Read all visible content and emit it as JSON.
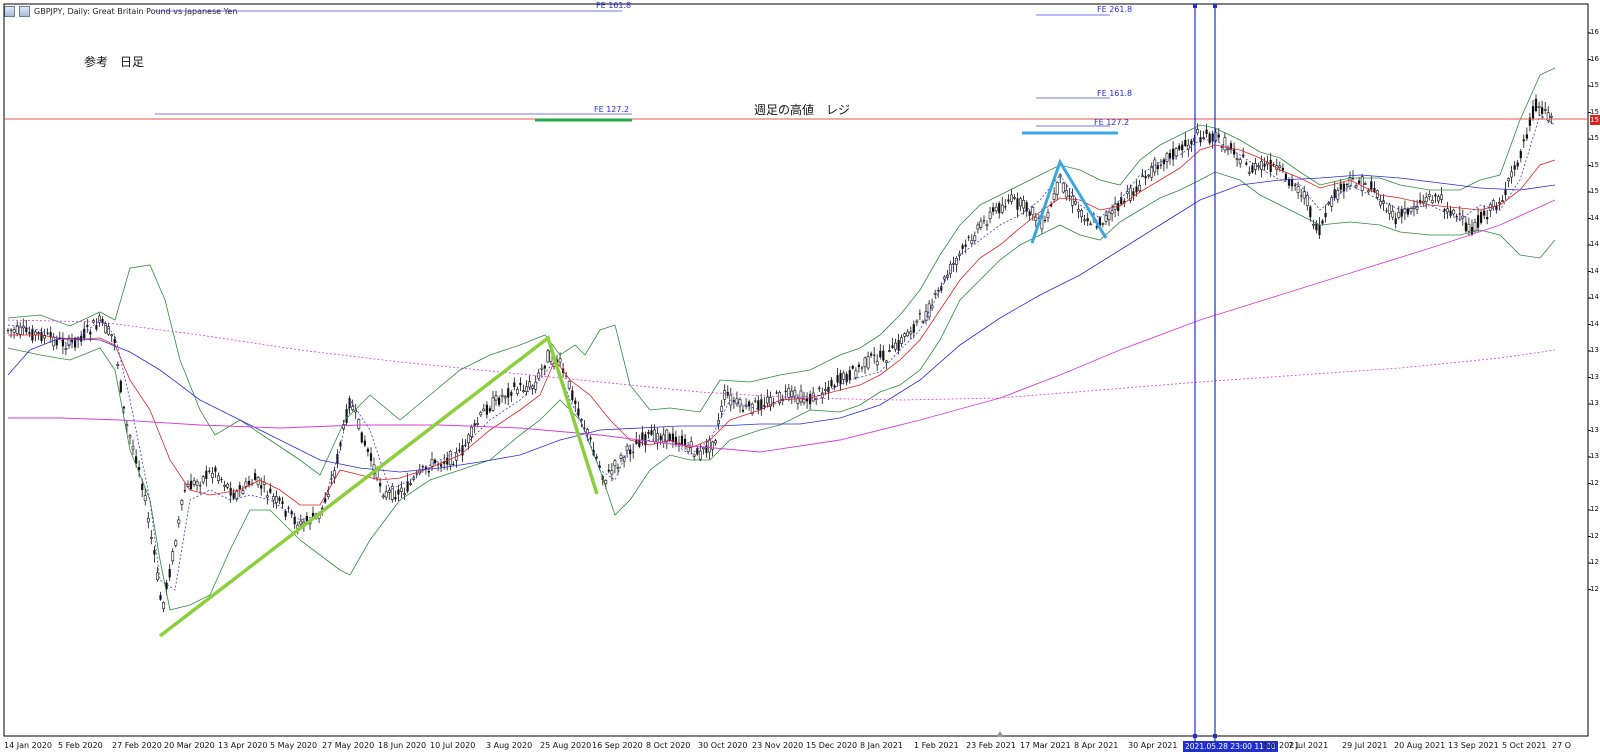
{
  "window": {
    "title": "GBPJPY, Daily:  Great Britain Pound vs Japanese Yen"
  },
  "annotations": {
    "top_left_note": "参考　日足",
    "resistance_label": "週足の高値　レジ",
    "fe_left_1618": "FE  161.8",
    "fe_left_1272": "FE  127.2",
    "fe_right_2618": "FE 261.8",
    "fe_right_1618": "FE 161.8",
    "fe_right_1272": "FE  127.2"
  },
  "time_axis": {
    "labels": [
      "14 Jan 2020",
      "5 Feb 2020",
      "27 Feb 2020",
      "20 Mar 2020",
      "13 Apr 2020",
      "5 May 2020",
      "27 May 2020",
      "18 Jun 2020",
      "10 Jul 2020",
      "3 Aug 2020",
      "25 Aug 2020",
      "16 Sep 2020",
      "8 Oct 2020",
      "30 Oct 2020",
      "23 Nov 2020",
      "15 Dec 2020",
      "8 Jan 2021",
      "1 Feb 2021",
      "23 Feb 2021",
      "17 Mar 2021",
      "8 Apr 2021",
      "30 Apr 2021",
      "7 Jul 2021",
      "29 Jul 2021",
      "20 Aug 2021",
      "13 Sep 2021",
      "5 Oct 2021",
      "27 O"
    ],
    "crosshair_badge": "2021.05.28 23:00 11:00",
    "partial_after_badge": "Jun 2021"
  },
  "price_axis": {
    "ticks": [
      "16",
      "16",
      "15",
      "15",
      "15",
      "15",
      "15",
      "14",
      "14",
      "14",
      "14",
      "14",
      "13",
      "13",
      "13",
      "13",
      "13",
      "12",
      "12",
      "12",
      "12",
      "12"
    ],
    "current_price_badge": "15"
  },
  "colors": {
    "candle": "#111111",
    "bollinger": "#2e8b3a",
    "ma_fast": "#e02020",
    "ma_mid": "#2a2ae0",
    "ma_slow": "#d83bd8",
    "signal_dotted": "#3838d8",
    "resistance": "#e85050",
    "fe_line": "#4a4ae8",
    "wave_green": "#8ccf3c",
    "wave_blue": "#3aa8e0",
    "green_bar": "#2aa84a",
    "crosshair": "#1f2fd0"
  }
}
